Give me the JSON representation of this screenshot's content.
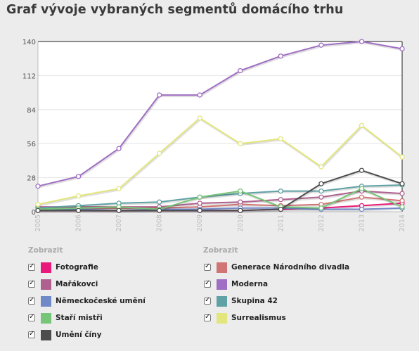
{
  "title": "Graf vývoje vybraných segmentů domácího trhu",
  "legend": {
    "heading_left": "Zobrazit",
    "heading_right": "Zobrazit",
    "items": [
      {
        "label": "Fotografie",
        "color": "#e8197a",
        "checked": true
      },
      {
        "label": "Generace Národního divadla",
        "color": "#d07474",
        "checked": true
      },
      {
        "label": "Mařákovci",
        "color": "#b0608e",
        "checked": true
      },
      {
        "label": "Moderna",
        "color": "#a06ec4",
        "checked": true
      },
      {
        "label": "Německočeské umění",
        "color": "#7289c8",
        "checked": true
      },
      {
        "label": "Skupina 42",
        "color": "#5fa1a4",
        "checked": true
      },
      {
        "label": "Staří mistři",
        "color": "#76c578",
        "checked": true
      },
      {
        "label": "Surrealismus",
        "color": "#e3e67c",
        "checked": true
      },
      {
        "label": "Umění číny",
        "color": "#4d4d4d",
        "checked": true
      }
    ]
  },
  "chart_data": {
    "type": "line",
    "title": "Graf vývoje vybraných segmentů domácího trhu",
    "x": [
      "2005",
      "2006",
      "2007",
      "2008",
      "2009",
      "2010",
      "2011",
      "2012",
      "2013",
      "2014"
    ],
    "yticks": [
      "0",
      "28",
      "56",
      "84",
      "112",
      "140"
    ],
    "ylim": [
      0,
      140
    ],
    "grid": true,
    "series": [
      {
        "name": "Fotografie",
        "color": "#e8197a",
        "values": [
          1,
          1,
          1,
          1,
          1,
          1,
          2,
          3,
          5,
          7
        ]
      },
      {
        "name": "Generace Národního divadla",
        "color": "#d07474",
        "values": [
          3,
          3,
          3,
          3,
          4,
          6,
          5,
          6,
          12,
          9
        ]
      },
      {
        "name": "Mařákovci",
        "color": "#b0608e",
        "values": [
          4,
          4,
          4,
          4,
          7,
          8,
          10,
          12,
          17,
          15
        ]
      },
      {
        "name": "Moderna",
        "color": "#a06ec4",
        "values": [
          21,
          29,
          52,
          96,
          96,
          116,
          128,
          137,
          140,
          134
        ]
      },
      {
        "name": "Německočeské umění",
        "color": "#7289c8",
        "values": [
          2,
          2,
          1,
          2,
          2,
          3,
          3,
          2,
          2,
          3
        ]
      },
      {
        "name": "Skupina 42",
        "color": "#5fa1a4",
        "values": [
          3,
          5,
          7,
          8,
          12,
          15,
          17,
          17,
          21,
          22
        ]
      },
      {
        "name": "Staří mistři",
        "color": "#76c578",
        "values": [
          2,
          3,
          4,
          2,
          12,
          17,
          4,
          3,
          19,
          4
        ]
      },
      {
        "name": "Surrealismus",
        "color": "#e3e67c",
        "values": [
          6,
          13,
          19,
          48,
          77,
          56,
          60,
          37,
          71,
          45
        ]
      },
      {
        "name": "Umění číny",
        "color": "#4d4d4d",
        "values": [
          1,
          1,
          1,
          1,
          1,
          1,
          2,
          23,
          34,
          23
        ]
      }
    ]
  }
}
